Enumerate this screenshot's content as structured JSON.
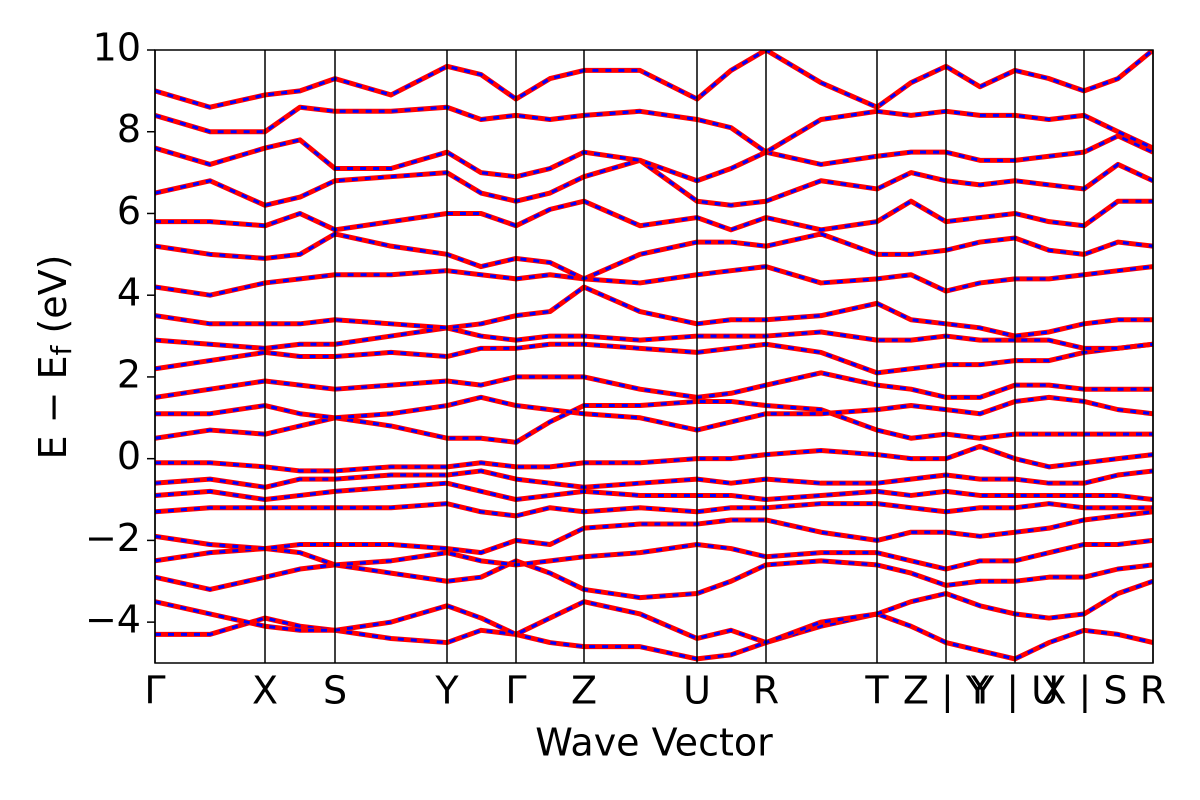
{
  "chart_data": {
    "type": "line",
    "xlabel": "Wave Vector",
    "ylabel": {
      "main": "E − E",
      "sub": "f",
      "unit": "(eV)"
    },
    "xlim": [
      0,
      9.98
    ],
    "ylim": [
      -5,
      10
    ],
    "xticks": [
      {
        "value": 0,
        "label": "Γ"
      },
      {
        "value": 1.1,
        "label": "X"
      },
      {
        "value": 1.8,
        "label": "S"
      },
      {
        "value": 2.92,
        "label": "Y"
      },
      {
        "value": 3.61,
        "label": "Γ"
      },
      {
        "value": 4.29,
        "label": "Z"
      },
      {
        "value": 5.42,
        "label": "U"
      },
      {
        "value": 6.11,
        "label": "R"
      },
      {
        "value": 7.22,
        "label": "T"
      },
      {
        "value": 7.91,
        "label": "Z | Y"
      },
      {
        "value": 8.6,
        "label": "Y | U"
      },
      {
        "value": 9.29,
        "label": "X | S"
      },
      {
        "value": 9.98,
        "label": "R"
      }
    ],
    "yticks": [
      {
        "value": -4,
        "label": "−4"
      },
      {
        "value": -2,
        "label": "−2"
      },
      0,
      2,
      4,
      6,
      8,
      10
    ],
    "vlines": true,
    "color": "#ff0000",
    "overlay_color": "#0000ff",
    "x": [
      0,
      0.55,
      1.1,
      1.45,
      1.8,
      2.36,
      2.92,
      3.26,
      3.61,
      3.95,
      4.29,
      4.85,
      5.42,
      5.76,
      6.11,
      6.66,
      7.22,
      7.56,
      7.91,
      8.25,
      8.6,
      8.94,
      9.29,
      9.63,
      9.98
    ],
    "series": [
      {
        "values": [
          -4.3,
          -4.3,
          -3.9,
          -4.1,
          -4.2,
          -4.4,
          -4.5,
          -4.2,
          -4.3,
          -4.5,
          -4.6,
          -4.6,
          -4.9,
          -4.8,
          -4.5,
          -4.1,
          -3.8,
          -4.1,
          -4.5,
          -4.7,
          -4.9,
          -4.5,
          -4.2,
          -4.3,
          -4.5
        ]
      },
      {
        "values": [
          -3.5,
          -3.8,
          -4.1,
          -4.2,
          -4.2,
          -4.0,
          -3.6,
          -3.9,
          -4.3,
          -3.9,
          -3.5,
          -3.8,
          -4.4,
          -4.2,
          -4.5,
          -4.0,
          -3.8,
          -3.5,
          -3.3,
          -3.6,
          -3.8,
          -3.9,
          -3.8,
          -3.3,
          -3.0
        ]
      },
      {
        "values": [
          -2.9,
          -3.2,
          -2.9,
          -2.7,
          -2.6,
          -2.8,
          -3.0,
          -2.9,
          -2.5,
          -2.8,
          -3.2,
          -3.4,
          -3.3,
          -3.0,
          -2.6,
          -2.5,
          -2.6,
          -2.8,
          -3.1,
          -3.0,
          -3.0,
          -2.9,
          -2.9,
          -2.7,
          -2.6
        ]
      },
      {
        "values": [
          -2.5,
          -2.3,
          -2.2,
          -2.3,
          -2.6,
          -2.5,
          -2.3,
          -2.5,
          -2.6,
          -2.5,
          -2.4,
          -2.3,
          -2.1,
          -2.2,
          -2.4,
          -2.3,
          -2.3,
          -2.5,
          -2.7,
          -2.5,
          -2.5,
          -2.3,
          -2.1,
          -2.1,
          -2.0
        ]
      },
      {
        "values": [
          -1.9,
          -2.1,
          -2.2,
          -2.1,
          -2.1,
          -2.1,
          -2.2,
          -2.3,
          -2.0,
          -2.1,
          -1.7,
          -1.6,
          -1.6,
          -1.5,
          -1.5,
          -1.8,
          -2.0,
          -1.8,
          -1.8,
          -1.9,
          -1.8,
          -1.7,
          -1.5,
          -1.4,
          -1.3
        ]
      },
      {
        "values": [
          -1.3,
          -1.2,
          -1.2,
          -1.2,
          -1.2,
          -1.2,
          -1.1,
          -1.3,
          -1.4,
          -1.2,
          -1.3,
          -1.2,
          -1.3,
          -1.2,
          -1.2,
          -1.1,
          -1.1,
          -1.2,
          -1.3,
          -1.2,
          -1.2,
          -1.1,
          -1.2,
          -1.2,
          -1.2
        ]
      },
      {
        "values": [
          -0.9,
          -0.8,
          -1.0,
          -0.9,
          -0.8,
          -0.7,
          -0.6,
          -0.8,
          -1.0,
          -0.9,
          -0.8,
          -0.9,
          -0.9,
          -0.9,
          -1.0,
          -0.9,
          -0.8,
          -0.9,
          -0.8,
          -0.9,
          -0.9,
          -0.9,
          -0.9,
          -0.9,
          -1.0
        ]
      },
      {
        "values": [
          -0.6,
          -0.5,
          -0.7,
          -0.5,
          -0.5,
          -0.4,
          -0.4,
          -0.3,
          -0.5,
          -0.6,
          -0.7,
          -0.6,
          -0.5,
          -0.6,
          -0.5,
          -0.6,
          -0.6,
          -0.5,
          -0.4,
          -0.5,
          -0.5,
          -0.6,
          -0.6,
          -0.4,
          -0.3
        ]
      },
      {
        "values": [
          -0.1,
          -0.1,
          -0.2,
          -0.3,
          -0.3,
          -0.2,
          -0.2,
          -0.1,
          -0.2,
          -0.2,
          -0.1,
          -0.1,
          0.0,
          0.0,
          0.1,
          0.2,
          0.1,
          0.0,
          0.0,
          0.3,
          0.0,
          -0.2,
          -0.1,
          0.0,
          0.1
        ]
      },
      {
        "values": [
          0.5,
          0.7,
          0.6,
          0.8,
          1.0,
          0.8,
          0.5,
          0.5,
          0.4,
          0.9,
          1.3,
          1.3,
          1.4,
          1.4,
          1.3,
          1.2,
          0.7,
          0.5,
          0.6,
          0.5,
          0.6,
          0.6,
          0.6,
          0.6,
          0.6
        ]
      },
      {
        "values": [
          1.1,
          1.1,
          1.3,
          1.1,
          1.0,
          1.1,
          1.3,
          1.5,
          1.3,
          1.2,
          1.1,
          1.0,
          0.7,
          0.9,
          1.1,
          1.1,
          1.2,
          1.3,
          1.2,
          1.1,
          1.4,
          1.5,
          1.4,
          1.2,
          1.1
        ]
      },
      {
        "values": [
          1.5,
          1.7,
          1.9,
          1.8,
          1.7,
          1.8,
          1.9,
          1.8,
          2.0,
          2.0,
          2.0,
          1.7,
          1.5,
          1.6,
          1.8,
          2.1,
          1.8,
          1.7,
          1.5,
          1.5,
          1.8,
          1.8,
          1.7,
          1.7,
          1.7
        ]
      },
      {
        "values": [
          2.2,
          2.4,
          2.6,
          2.5,
          2.5,
          2.6,
          2.5,
          2.7,
          2.7,
          2.8,
          2.8,
          2.7,
          2.6,
          2.7,
          2.8,
          2.6,
          2.1,
          2.2,
          2.3,
          2.3,
          2.4,
          2.4,
          2.6,
          2.7,
          2.8
        ]
      },
      {
        "values": [
          2.9,
          2.8,
          2.7,
          2.8,
          2.8,
          3.0,
          3.2,
          3.0,
          2.9,
          3.0,
          3.0,
          2.9,
          3.0,
          3.0,
          3.0,
          3.1,
          2.9,
          2.9,
          3.0,
          2.9,
          2.9,
          2.9,
          2.7,
          2.7,
          2.8
        ]
      },
      {
        "values": [
          3.5,
          3.3,
          3.3,
          3.3,
          3.4,
          3.3,
          3.2,
          3.3,
          3.5,
          3.6,
          4.2,
          3.6,
          3.3,
          3.4,
          3.4,
          3.5,
          3.8,
          3.4,
          3.3,
          3.2,
          3.0,
          3.1,
          3.3,
          3.4,
          3.4
        ]
      },
      {
        "values": [
          4.2,
          4.0,
          4.3,
          4.4,
          4.5,
          4.5,
          4.6,
          4.5,
          4.4,
          4.5,
          4.4,
          4.3,
          4.5,
          4.6,
          4.7,
          4.3,
          4.4,
          4.5,
          4.1,
          4.3,
          4.4,
          4.4,
          4.5,
          4.6,
          4.7
        ]
      },
      {
        "values": [
          5.2,
          5.0,
          4.9,
          5.0,
          5.5,
          5.2,
          5.0,
          4.7,
          4.9,
          4.8,
          4.4,
          5.0,
          5.3,
          5.3,
          5.2,
          5.5,
          5.0,
          5.0,
          5.1,
          5.3,
          5.4,
          5.1,
          5.0,
          5.3,
          5.2
        ]
      },
      {
        "values": [
          5.8,
          5.8,
          5.7,
          6.0,
          5.6,
          5.8,
          6.0,
          6.0,
          5.7,
          6.1,
          6.3,
          5.7,
          5.9,
          5.6,
          5.9,
          5.6,
          5.8,
          6.3,
          5.8,
          5.9,
          6.0,
          5.8,
          5.7,
          6.3,
          6.3
        ]
      },
      {
        "values": [
          6.5,
          6.8,
          6.2,
          6.4,
          6.8,
          6.9,
          7.0,
          6.5,
          6.3,
          6.5,
          6.9,
          7.3,
          6.3,
          6.2,
          6.3,
          6.8,
          6.6,
          7.0,
          6.8,
          6.7,
          6.8,
          6.7,
          6.6,
          7.2,
          6.8
        ]
      },
      {
        "values": [
          7.6,
          7.2,
          7.6,
          7.8,
          7.1,
          7.1,
          7.5,
          7.0,
          6.9,
          7.1,
          7.5,
          7.3,
          6.8,
          7.1,
          7.5,
          7.2,
          7.4,
          7.5,
          7.5,
          7.3,
          7.3,
          7.4,
          7.5,
          7.9,
          7.5
        ]
      },
      {
        "values": [
          8.4,
          8.0,
          8.0,
          8.6,
          8.5,
          8.5,
          8.6,
          8.3,
          8.4,
          8.3,
          8.4,
          8.5,
          8.3,
          8.1,
          7.5,
          8.3,
          8.5,
          8.4,
          8.5,
          8.4,
          8.4,
          8.3,
          8.4,
          8.0,
          7.6
        ]
      },
      {
        "values": [
          9.0,
          8.6,
          8.9,
          9.0,
          9.3,
          8.9,
          9.6,
          9.4,
          8.8,
          9.3,
          9.5,
          9.5,
          8.8,
          9.5,
          10,
          9.2,
          8.6,
          9.2,
          9.6,
          9.1,
          9.5,
          9.3,
          9.0,
          9.3,
          10
        ]
      }
    ]
  }
}
